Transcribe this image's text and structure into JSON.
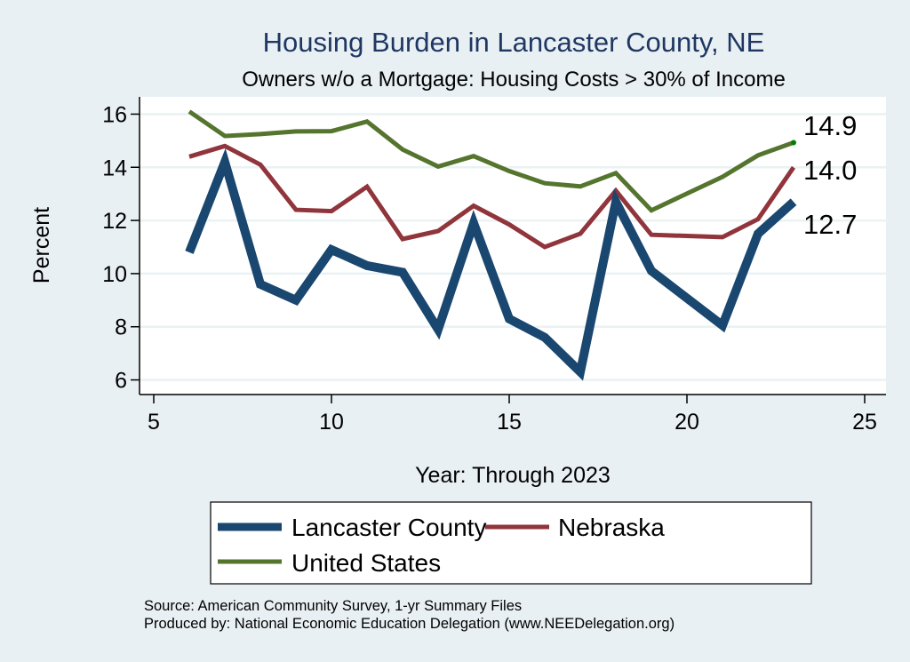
{
  "chart_data": {
    "type": "line",
    "title": "Housing Burden in Lancaster County, NE",
    "subtitle": "Owners w/o a Mortgage: Housing Costs > 30% of Income",
    "xlabel": "Year: Through 2023",
    "ylabel": "Percent",
    "xlim": [
      4.6,
      25.6
    ],
    "ylim": [
      5.45,
      16.65
    ],
    "xticks": [
      5,
      10,
      15,
      20,
      25
    ],
    "yticks": [
      6,
      8,
      10,
      12,
      14,
      16
    ],
    "grid": "horizontal",
    "legend_position": "bottom",
    "x": [
      6,
      7,
      8,
      9,
      10,
      11,
      12,
      13,
      14,
      15,
      16,
      17,
      18,
      19,
      21,
      22,
      23
    ],
    "series": [
      {
        "name": "Lancaster County",
        "color": "#1a476f",
        "values": [
          10.8,
          14.2,
          9.6,
          9.0,
          10.9,
          10.3,
          10.05,
          7.9,
          11.9,
          8.3,
          7.6,
          6.3,
          12.7,
          10.1,
          8.05,
          11.5,
          12.7
        ],
        "end_label": "12.7"
      },
      {
        "name": "Nebraska",
        "color": "#90353b",
        "values": [
          14.4,
          14.8,
          14.1,
          12.4,
          12.35,
          13.27,
          11.3,
          11.6,
          12.55,
          11.85,
          11.0,
          11.5,
          13.12,
          11.46,
          11.37,
          12.05,
          14.0
        ],
        "end_label": "14.0"
      },
      {
        "name": "United States",
        "color": "#55752f",
        "values": [
          16.1,
          15.18,
          15.25,
          15.35,
          15.36,
          15.72,
          14.67,
          14.03,
          14.42,
          13.86,
          13.4,
          13.28,
          13.78,
          12.38,
          13.64,
          14.45,
          14.93
        ],
        "end_label": "14.9"
      }
    ],
    "notes": [
      "Source: American Community Survey, 1-yr Summary Files",
      "Produced by: National Economic Education Delegation (www.NEEDelegation.org)"
    ]
  }
}
